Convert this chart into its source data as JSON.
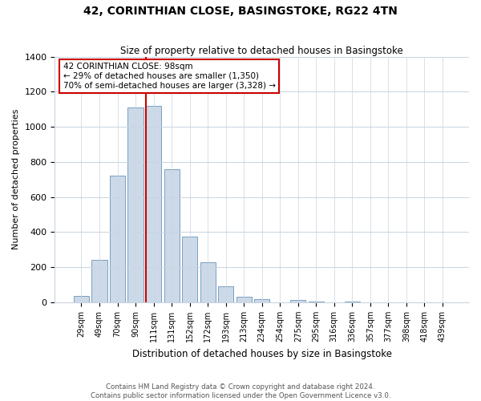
{
  "title": "42, CORINTHIAN CLOSE, BASINGSTOKE, RG22 4TN",
  "subtitle": "Size of property relative to detached houses in Basingstoke",
  "xlabel": "Distribution of detached houses by size in Basingstoke",
  "ylabel": "Number of detached properties",
  "categories": [
    "29sqm",
    "49sqm",
    "70sqm",
    "90sqm",
    "111sqm",
    "131sqm",
    "152sqm",
    "172sqm",
    "193sqm",
    "213sqm",
    "234sqm",
    "254sqm",
    "275sqm",
    "295sqm",
    "316sqm",
    "336sqm",
    "357sqm",
    "377sqm",
    "398sqm",
    "418sqm",
    "439sqm"
  ],
  "values": [
    35,
    240,
    720,
    1110,
    1120,
    760,
    375,
    230,
    90,
    30,
    20,
    0,
    15,
    5,
    0,
    5,
    0,
    0,
    0,
    0,
    0
  ],
  "bar_color": "#ccd9e8",
  "bar_edge_color": "#7aa0c0",
  "vline_x": 3.575,
  "vline_color": "#cc0000",
  "annotation_text": "42 CORINTHIAN CLOSE: 98sqm\n← 29% of detached houses are smaller (1,350)\n70% of semi-detached houses are larger (3,328) →",
  "annotation_box_color": "#ffffff",
  "annotation_box_edge_color": "#cc0000",
  "ylim": [
    0,
    1400
  ],
  "yticks": [
    0,
    200,
    400,
    600,
    800,
    1000,
    1200,
    1400
  ],
  "footer_line1": "Contains HM Land Registry data © Crown copyright and database right 2024.",
  "footer_line2": "Contains public sector information licensed under the Open Government Licence v3.0.",
  "background_color": "#ffffff",
  "grid_color": "#c8d4e0"
}
